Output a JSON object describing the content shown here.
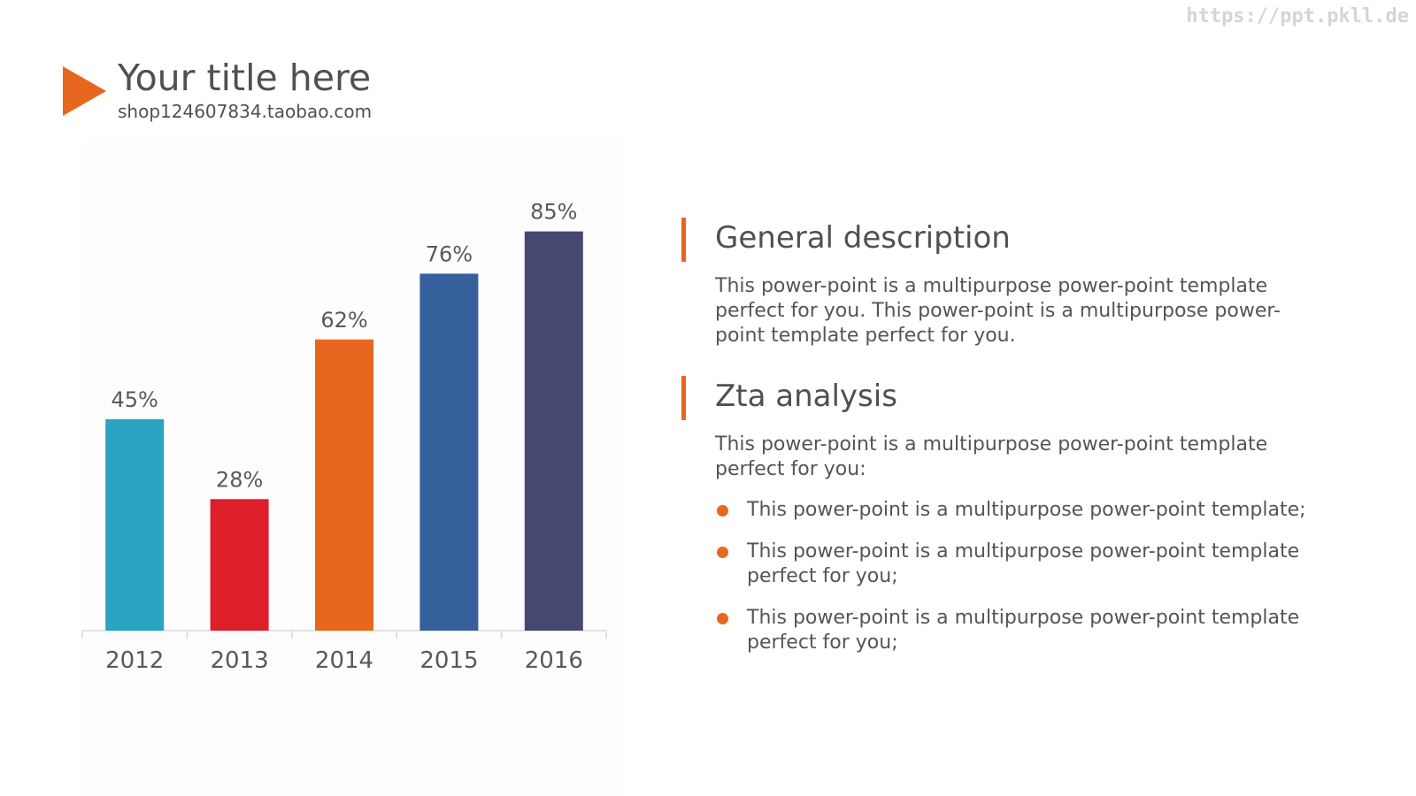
{
  "watermark": "https://ppt.pkll.de",
  "header": {
    "title": "Your title here",
    "subtitle": "shop124607834.taobao.com"
  },
  "colors": {
    "accent": "#e8671e",
    "text": "#505050"
  },
  "chart_data": {
    "type": "bar",
    "categories": [
      "2012",
      "2013",
      "2014",
      "2015",
      "2016"
    ],
    "values": [
      45,
      28,
      62,
      76,
      85
    ],
    "data_labels": [
      "45%",
      "28%",
      "62%",
      "76%",
      "85%"
    ],
    "colors": [
      "#2aa4c0",
      "#dc1f2b",
      "#e8671e",
      "#35609b",
      "#454871"
    ],
    "title": "",
    "xlabel": "",
    "ylabel": "",
    "ylim": [
      0,
      100
    ],
    "grid": false,
    "legend": "none"
  },
  "sections": [
    {
      "heading": "General description",
      "paragraph": "This power-point is a multipurpose power-point template perfect for you. This power-point is a multipurpose power-point template perfect for you.",
      "bullets": []
    },
    {
      "heading": "Zta analysis",
      "paragraph": "This power-point is a multipurpose power-point template perfect for you:",
      "bullets": [
        "This power-point is a multipurpose power-point template;",
        "This power-point is a multipurpose power-point template perfect for you;",
        "This power-point is a multipurpose power-point template perfect for you;"
      ]
    }
  ]
}
